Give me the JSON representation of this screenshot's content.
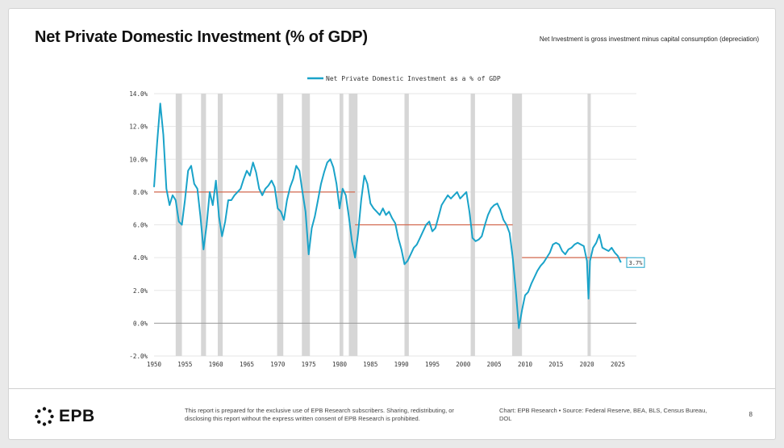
{
  "slide": {
    "title": "Net Private Domestic Investment (% of GDP)",
    "note": "Net Investment is gross investment minus capital consumption (depreciation)"
  },
  "footer": {
    "logo_text": "EPB",
    "disclaimer": "This report is prepared for the exclusive use of EPB Research subscribers. Sharing, redistributing, or disclosing this report without the express written consent of EPB Research is prohibited.",
    "source": "Chart: EPB Research  •  Source: Federal Reserve, BEA, BLS, Census Bureau, DOL",
    "page_number": "8"
  },
  "colors": {
    "series": "#1aa3c9",
    "average_line": "#d2694f",
    "recession": "#d6d6d6",
    "grid": "#e6e6e6",
    "zero_line": "#9a9a9a"
  },
  "chart_data": {
    "type": "line",
    "series": [
      {
        "name": "Net Private Domestic Investment as a % of GDP",
        "x": [
          1950.0,
          1950.5,
          1951.0,
          1951.5,
          1952.0,
          1952.5,
          1953.0,
          1953.5,
          1954.0,
          1954.5,
          1955.0,
          1955.5,
          1956.0,
          1956.5,
          1957.0,
          1957.5,
          1958.0,
          1958.5,
          1959.0,
          1959.5,
          1960.0,
          1960.5,
          1961.0,
          1961.5,
          1962.0,
          1962.5,
          1963.0,
          1963.5,
          1964.0,
          1964.5,
          1965.0,
          1965.5,
          1966.0,
          1966.5,
          1967.0,
          1967.5,
          1968.0,
          1968.5,
          1969.0,
          1969.5,
          1970.0,
          1970.5,
          1971.0,
          1971.5,
          1972.0,
          1972.5,
          1973.0,
          1973.5,
          1974.0,
          1974.5,
          1975.0,
          1975.5,
          1976.0,
          1976.5,
          1977.0,
          1977.5,
          1978.0,
          1978.5,
          1979.0,
          1979.5,
          1980.0,
          1980.5,
          1981.0,
          1981.5,
          1982.0,
          1982.5,
          1983.0,
          1983.5,
          1984.0,
          1984.5,
          1985.0,
          1985.5,
          1986.0,
          1986.5,
          1987.0,
          1987.5,
          1988.0,
          1988.5,
          1989.0,
          1989.5,
          1990.0,
          1990.5,
          1991.0,
          1991.5,
          1992.0,
          1992.5,
          1993.0,
          1993.5,
          1994.0,
          1994.5,
          1995.0,
          1995.5,
          1996.0,
          1996.5,
          1997.0,
          1997.5,
          1998.0,
          1998.5,
          1999.0,
          1999.5,
          2000.0,
          2000.5,
          2001.0,
          2001.5,
          2002.0,
          2002.5,
          2003.0,
          2003.5,
          2004.0,
          2004.5,
          2005.0,
          2005.5,
          2006.0,
          2006.5,
          2007.0,
          2007.5,
          2008.0,
          2008.5,
          2009.0,
          2009.5,
          2010.0,
          2010.5,
          2011.0,
          2011.5,
          2012.0,
          2012.5,
          2013.0,
          2013.5,
          2014.0,
          2014.5,
          2015.0,
          2015.5,
          2016.0,
          2016.5,
          2017.0,
          2017.5,
          2018.0,
          2018.5,
          2019.0,
          2019.5,
          2020.0,
          2020.25,
          2020.5,
          2021.0,
          2021.5,
          2022.0,
          2022.5,
          2023.0,
          2023.5,
          2024.0,
          2024.5,
          2025.0,
          2025.25,
          2025.5
        ],
        "values": [
          8.3,
          11.0,
          13.4,
          11.5,
          8.2,
          7.2,
          7.8,
          7.5,
          6.2,
          6.0,
          7.5,
          9.3,
          9.6,
          8.5,
          8.2,
          6.5,
          4.5,
          6.0,
          8.0,
          7.2,
          8.7,
          6.5,
          5.3,
          6.2,
          7.5,
          7.5,
          7.8,
          8.0,
          8.2,
          8.8,
          9.3,
          9.0,
          9.8,
          9.2,
          8.2,
          7.8,
          8.2,
          8.4,
          8.7,
          8.3,
          7.0,
          6.8,
          6.3,
          7.5,
          8.3,
          8.8,
          9.6,
          9.3,
          8.0,
          6.8,
          4.2,
          5.8,
          6.5,
          7.5,
          8.5,
          9.2,
          9.8,
          10.0,
          9.5,
          8.5,
          7.0,
          8.2,
          7.8,
          6.5,
          5.0,
          4.0,
          5.5,
          7.5,
          9.0,
          8.5,
          7.3,
          7.0,
          6.8,
          6.6,
          7.0,
          6.6,
          6.8,
          6.4,
          6.1,
          5.2,
          4.5,
          3.6,
          3.8,
          4.2,
          4.6,
          4.8,
          5.2,
          5.6,
          6.0,
          6.2,
          5.6,
          5.8,
          6.5,
          7.2,
          7.5,
          7.8,
          7.6,
          7.8,
          8.0,
          7.6,
          7.8,
          8.0,
          6.8,
          5.2,
          5.0,
          5.1,
          5.3,
          6.0,
          6.6,
          7.0,
          7.2,
          7.3,
          6.9,
          6.3,
          6.0,
          5.5,
          4.0,
          2.0,
          -0.3,
          0.8,
          1.7,
          1.9,
          2.4,
          2.8,
          3.2,
          3.5,
          3.7,
          4.0,
          4.3,
          4.8,
          4.9,
          4.8,
          4.4,
          4.2,
          4.5,
          4.6,
          4.8,
          4.9,
          4.8,
          4.7,
          3.8,
          1.5,
          3.8,
          4.6,
          4.9,
          5.4,
          4.6,
          4.5,
          4.4,
          4.6,
          4.3,
          4.1,
          3.9,
          3.7
        ]
      }
    ],
    "averages": [
      {
        "x": [
          1950,
          1982.5
        ],
        "value": 8.0
      },
      {
        "x": [
          1982.5,
          2008
        ],
        "value": 6.0
      },
      {
        "x": [
          2009.5,
          2026.5
        ],
        "value": 4.0
      }
    ],
    "recessions": [
      [
        1953.5,
        1954.5
      ],
      [
        1957.6,
        1958.4
      ],
      [
        1960.3,
        1961.1
      ],
      [
        1969.9,
        1970.9
      ],
      [
        1973.9,
        1975.2
      ],
      [
        1980.0,
        1980.6
      ],
      [
        1981.5,
        1982.9
      ],
      [
        1990.5,
        1991.2
      ],
      [
        2001.2,
        2001.9
      ],
      [
        2007.9,
        2009.5
      ],
      [
        2020.1,
        2020.4
      ]
    ],
    "last_value_label": "3.7%",
    "y_ticks": [
      "-2.0%",
      "0.0%",
      "2.0%",
      "4.0%",
      "6.0%",
      "8.0%",
      "10.0%",
      "12.0%",
      "14.0%"
    ],
    "y_tick_values": [
      -2,
      0,
      2,
      4,
      6,
      8,
      10,
      12,
      14
    ],
    "x_ticks": [
      "1950",
      "1955",
      "1960",
      "1965",
      "1970",
      "1975",
      "1980",
      "1985",
      "1990",
      "1995",
      "2000",
      "2005",
      "2010",
      "2015",
      "2020",
      "2025"
    ],
    "x_tick_values": [
      1950,
      1955,
      1960,
      1965,
      1970,
      1975,
      1980,
      1985,
      1990,
      1995,
      2000,
      2005,
      2010,
      2015,
      2020,
      2025
    ],
    "xlim": [
      1950,
      2028
    ],
    "ylim": [
      -2,
      14
    ],
    "grid": true,
    "legend_position": "top-center",
    "title": "",
    "xlabel": "",
    "ylabel": ""
  }
}
